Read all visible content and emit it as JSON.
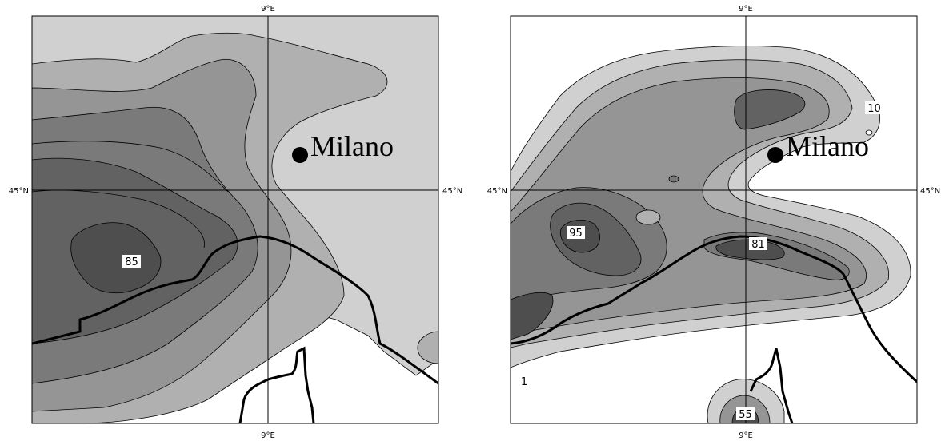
{
  "panels": [
    {
      "lon_top": "9°E",
      "lon_bottom": "9°E",
      "lat_left": "45°N",
      "lat_right": "45°N",
      "city": "Milano",
      "contour_labels": [
        "85"
      ]
    },
    {
      "lon_top": "9°E",
      "lon_bottom": "9°E",
      "lat_left": "45°N",
      "lat_right": "45°N",
      "city": "Milano",
      "contour_labels": [
        "95",
        "81",
        "10",
        "55",
        "1"
      ]
    }
  ],
  "colors": {
    "light": "#d0d0d0",
    "mid": "#b0b0b0",
    "midDark": "#959595",
    "dark": "#7a7a7a",
    "darker": "#626262",
    "darkest": "#4e4e4e",
    "border": "#000000"
  }
}
